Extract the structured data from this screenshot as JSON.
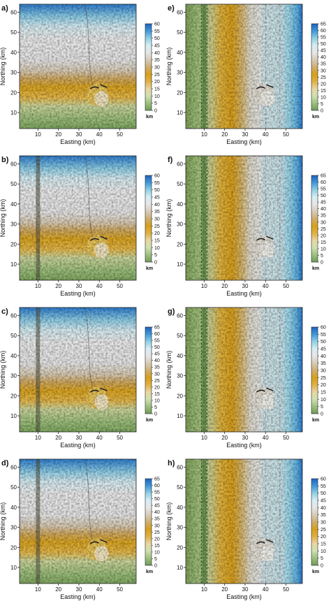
{
  "figure": {
    "colormap": [
      "#6f9a57",
      "#9cc07e",
      "#cfe0b0",
      "#e8d6a0",
      "#e0b044",
      "#d79f1a",
      "#cfae6e",
      "#d7cbb8",
      "#e6e6e6",
      "#d6eef3",
      "#8fd0e6",
      "#3f98d8",
      "#1e62c0"
    ],
    "colorbar_unit": "km"
  },
  "chart_data": [
    {
      "panel_label": "a)",
      "type": "heatmap",
      "xlabel": "Easting (km)",
      "ylabel": "Northing (km)",
      "xlim": [
        1,
        58
      ],
      "ylim": [
        2,
        64
      ],
      "xticks": [
        10,
        20,
        30,
        40,
        50
      ],
      "yticks": [
        10,
        20,
        30,
        40,
        50,
        60
      ],
      "colorbar": {
        "max": 60,
        "ticks": [
          0,
          5,
          10,
          15,
          20,
          25,
          30,
          35,
          40,
          45,
          50,
          55,
          60
        ],
        "unit": "km"
      },
      "surface": {
        "orientation": "horizontal",
        "vertical_band_km": null
      }
    },
    {
      "panel_label": "b)",
      "type": "heatmap",
      "xlabel": "Easting (km)",
      "ylabel": "Northing (km)",
      "xlim": [
        1,
        58
      ],
      "ylim": [
        2,
        64
      ],
      "xticks": [
        10,
        20,
        30,
        40,
        50
      ],
      "yticks": [
        10,
        20,
        30,
        40,
        50,
        60
      ],
      "colorbar": {
        "max": 60,
        "ticks": [
          0,
          5,
          10,
          15,
          20,
          25,
          30,
          35,
          40,
          45,
          50,
          55,
          60
        ],
        "unit": "km"
      },
      "surface": {
        "orientation": "horizontal",
        "vertical_band_km": 10
      }
    },
    {
      "panel_label": "c)",
      "type": "heatmap",
      "xlabel": "Easting (km)",
      "ylabel": "Northing (km)",
      "xlim": [
        1,
        58
      ],
      "ylim": [
        2,
        64
      ],
      "xticks": [
        10,
        20,
        30,
        40,
        50
      ],
      "yticks": [
        10,
        20,
        30,
        40,
        50,
        60
      ],
      "colorbar": {
        "max": 65,
        "ticks": [
          0,
          5,
          10,
          15,
          20,
          25,
          30,
          35,
          40,
          45,
          50,
          55,
          60,
          65
        ],
        "unit": "km"
      },
      "surface": {
        "orientation": "horizontal",
        "vertical_band_km": 10
      }
    },
    {
      "panel_label": "d)",
      "type": "heatmap",
      "xlabel": "Easting (km)",
      "ylabel": "Northing (km)",
      "xlim": [
        1,
        58
      ],
      "ylim": [
        2,
        64
      ],
      "xticks": [
        10,
        20,
        30,
        40,
        50
      ],
      "yticks": [
        10,
        20,
        30,
        40,
        50,
        60
      ],
      "colorbar": {
        "max": 65,
        "ticks": [
          0,
          5,
          10,
          15,
          20,
          25,
          30,
          35,
          40,
          45,
          50,
          55,
          60,
          65
        ],
        "unit": "km"
      },
      "surface": {
        "orientation": "horizontal",
        "vertical_band_km": 10
      }
    },
    {
      "panel_label": "e)",
      "type": "heatmap",
      "xlabel": "Easting (km)",
      "ylabel": "Northing (km)",
      "xlim": [
        1,
        58
      ],
      "ylim": [
        2,
        64
      ],
      "xticks": [
        10,
        20,
        30,
        40,
        50
      ],
      "yticks": [
        10,
        20,
        30,
        40,
        50,
        60
      ],
      "colorbar": {
        "max": 65,
        "ticks": [
          0,
          5,
          10,
          15,
          20,
          25,
          30,
          35,
          40,
          45,
          50,
          55,
          60,
          65
        ],
        "unit": "km"
      },
      "surface": {
        "orientation": "vertical",
        "vertical_band_km": 10
      }
    },
    {
      "panel_label": "f)",
      "type": "heatmap",
      "xlabel": "Easting (km)",
      "ylabel": "Northing (km)",
      "xlim": [
        1,
        58
      ],
      "ylim": [
        2,
        64
      ],
      "xticks": [
        10,
        20,
        30,
        40,
        50
      ],
      "yticks": [
        10,
        20,
        30,
        40,
        50,
        60
      ],
      "colorbar": {
        "max": 65,
        "ticks": [
          0,
          5,
          10,
          15,
          20,
          25,
          30,
          35,
          40,
          45,
          50,
          55,
          60,
          65
        ],
        "unit": "km"
      },
      "surface": {
        "orientation": "vertical",
        "vertical_band_km": 10
      }
    },
    {
      "panel_label": "g)",
      "type": "heatmap",
      "xlabel": "Easting (km)",
      "ylabel": "Northing (km)",
      "xlim": [
        1,
        58
      ],
      "ylim": [
        2,
        64
      ],
      "xticks": [
        10,
        20,
        30,
        40,
        50
      ],
      "yticks": [
        10,
        20,
        30,
        40,
        50,
        60
      ],
      "colorbar": {
        "max": 60,
        "ticks": [
          0,
          5,
          10,
          15,
          20,
          25,
          30,
          35,
          40,
          45,
          50,
          55,
          60
        ],
        "unit": "km"
      },
      "surface": {
        "orientation": "vertical",
        "vertical_band_km": 10
      }
    },
    {
      "panel_label": "h)",
      "type": "heatmap",
      "xlabel": "Easting (km)",
      "ylabel": "Northing (km)",
      "xlim": [
        1,
        58
      ],
      "ylim": [
        2,
        64
      ],
      "xticks": [
        10,
        20,
        30,
        40,
        50
      ],
      "yticks": [
        10,
        20,
        30,
        40,
        50,
        60
      ],
      "colorbar": {
        "max": 60,
        "ticks": [
          0,
          5,
          10,
          15,
          20,
          25,
          30,
          35,
          40,
          45,
          50,
          55,
          60
        ],
        "unit": "km"
      },
      "surface": {
        "orientation": "vertical",
        "vertical_band_km": 10
      }
    }
  ]
}
